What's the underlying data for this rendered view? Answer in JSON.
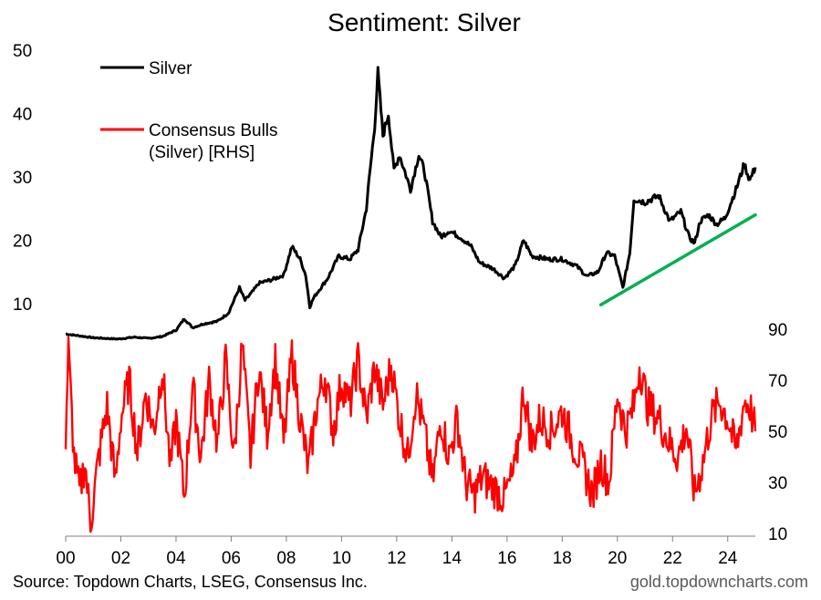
{
  "chart_data": {
    "type": "line",
    "title": "Sentiment: Silver",
    "x_ticks": [
      "00",
      "02",
      "04",
      "06",
      "08",
      "10",
      "12",
      "14",
      "16",
      "18",
      "20",
      "22",
      "24"
    ],
    "xlim": [
      2000,
      2025
    ],
    "left_axis": {
      "ticks": [
        "10",
        "20",
        "30",
        "40",
        "50"
      ],
      "ylim": [
        2.5,
        50
      ]
    },
    "right_axis": {
      "ticks": [
        "10",
        "30",
        "50",
        "70",
        "90"
      ],
      "ylim": [
        10,
        90
      ]
    },
    "grid": false,
    "legend_position": "top-left",
    "series": [
      {
        "name": "Silver",
        "axis": "left",
        "color": "#000000",
        "points": [
          [
            2000.0,
            5.2
          ],
          [
            2001.0,
            4.6
          ],
          [
            2001.9,
            4.4
          ],
          [
            2002.5,
            4.7
          ],
          [
            2003.0,
            4.5
          ],
          [
            2003.5,
            4.8
          ],
          [
            2004.0,
            5.8
          ],
          [
            2004.3,
            7.6
          ],
          [
            2004.6,
            6.2
          ],
          [
            2005.0,
            6.8
          ],
          [
            2005.5,
            7.2
          ],
          [
            2005.9,
            8.5
          ],
          [
            2006.3,
            12.5
          ],
          [
            2006.5,
            10.5
          ],
          [
            2006.8,
            12.0
          ],
          [
            2007.0,
            13.2
          ],
          [
            2007.5,
            13.8
          ],
          [
            2007.9,
            14.5
          ],
          [
            2008.2,
            19.0
          ],
          [
            2008.5,
            17.0
          ],
          [
            2008.7,
            14.5
          ],
          [
            2008.85,
            9.5
          ],
          [
            2009.0,
            11.0
          ],
          [
            2009.5,
            14.0
          ],
          [
            2009.9,
            17.5
          ],
          [
            2010.3,
            17.0
          ],
          [
            2010.6,
            18.5
          ],
          [
            2010.9,
            25.0
          ],
          [
            2011.0,
            29.5
          ],
          [
            2011.2,
            38.0
          ],
          [
            2011.32,
            46.5
          ],
          [
            2011.5,
            36.5
          ],
          [
            2011.7,
            40.0
          ],
          [
            2011.9,
            31.0
          ],
          [
            2012.1,
            33.5
          ],
          [
            2012.5,
            28.0
          ],
          [
            2012.8,
            33.5
          ],
          [
            2013.0,
            31.0
          ],
          [
            2013.3,
            23.0
          ],
          [
            2013.6,
            20.5
          ],
          [
            2013.9,
            21.5
          ],
          [
            2014.3,
            20.5
          ],
          [
            2014.7,
            19.0
          ],
          [
            2015.0,
            16.5
          ],
          [
            2015.5,
            15.5
          ],
          [
            2015.9,
            14.0
          ],
          [
            2016.3,
            16.0
          ],
          [
            2016.6,
            20.0
          ],
          [
            2016.9,
            17.5
          ],
          [
            2017.5,
            17.0
          ],
          [
            2018.0,
            17.0
          ],
          [
            2018.5,
            16.0
          ],
          [
            2018.9,
            14.3
          ],
          [
            2019.3,
            15.0
          ],
          [
            2019.6,
            18.0
          ],
          [
            2019.9,
            17.5
          ],
          [
            2020.2,
            12.5
          ],
          [
            2020.45,
            18.0
          ],
          [
            2020.6,
            26.5
          ],
          [
            2021.0,
            26.0
          ],
          [
            2021.5,
            27.0
          ],
          [
            2021.9,
            23.0
          ],
          [
            2022.3,
            24.5
          ],
          [
            2022.6,
            20.5
          ],
          [
            2022.8,
            19.5
          ],
          [
            2023.0,
            23.0
          ],
          [
            2023.3,
            24.0
          ],
          [
            2023.6,
            22.5
          ],
          [
            2023.9,
            23.5
          ],
          [
            2024.3,
            28.0
          ],
          [
            2024.6,
            32.0
          ],
          [
            2024.8,
            29.5
          ],
          [
            2025.0,
            31.5
          ]
        ]
      },
      {
        "name": "Consensus Bulls (Silver) [RHS]",
        "axis": "right",
        "color": "#ff0000",
        "points": [
          [
            2000.0,
            48
          ],
          [
            2000.1,
            82
          ],
          [
            2000.3,
            40
          ],
          [
            2000.5,
            26
          ],
          [
            2000.7,
            38
          ],
          [
            2000.9,
            14
          ],
          [
            2001.2,
            40
          ],
          [
            2001.5,
            60
          ],
          [
            2001.8,
            30
          ],
          [
            2002.0,
            55
          ],
          [
            2002.3,
            70
          ],
          [
            2002.6,
            42
          ],
          [
            2002.9,
            65
          ],
          [
            2003.2,
            50
          ],
          [
            2003.5,
            75
          ],
          [
            2003.8,
            35
          ],
          [
            2004.0,
            55
          ],
          [
            2004.3,
            24
          ],
          [
            2004.6,
            68
          ],
          [
            2004.9,
            40
          ],
          [
            2005.2,
            70
          ],
          [
            2005.5,
            45
          ],
          [
            2005.8,
            78
          ],
          [
            2006.1,
            40
          ],
          [
            2006.4,
            84
          ],
          [
            2006.7,
            40
          ],
          [
            2007.0,
            75
          ],
          [
            2007.3,
            50
          ],
          [
            2007.6,
            78
          ],
          [
            2007.9,
            45
          ],
          [
            2008.2,
            80
          ],
          [
            2008.5,
            55
          ],
          [
            2008.8,
            35
          ],
          [
            2009.1,
            60
          ],
          [
            2009.4,
            72
          ],
          [
            2009.7,
            50
          ],
          [
            2010.0,
            70
          ],
          [
            2010.3,
            60
          ],
          [
            2010.6,
            78
          ],
          [
            2010.9,
            55
          ],
          [
            2011.2,
            75
          ],
          [
            2011.5,
            60
          ],
          [
            2011.8,
            76
          ],
          [
            2012.1,
            55
          ],
          [
            2012.4,
            40
          ],
          [
            2012.7,
            65
          ],
          [
            2013.0,
            50
          ],
          [
            2013.3,
            30
          ],
          [
            2013.6,
            55
          ],
          [
            2013.9,
            40
          ],
          [
            2014.2,
            55
          ],
          [
            2014.5,
            30
          ],
          [
            2014.8,
            25
          ],
          [
            2015.1,
            32
          ],
          [
            2015.5,
            28
          ],
          [
            2015.9,
            24
          ],
          [
            2016.3,
            35
          ],
          [
            2016.6,
            66
          ],
          [
            2016.9,
            45
          ],
          [
            2017.2,
            55
          ],
          [
            2017.6,
            50
          ],
          [
            2018.0,
            58
          ],
          [
            2018.4,
            45
          ],
          [
            2018.8,
            35
          ],
          [
            2019.1,
            25
          ],
          [
            2019.4,
            38
          ],
          [
            2019.7,
            30
          ],
          [
            2020.0,
            65
          ],
          [
            2020.3,
            50
          ],
          [
            2020.6,
            60
          ],
          [
            2020.8,
            76
          ],
          [
            2021.1,
            60
          ],
          [
            2021.5,
            55
          ],
          [
            2021.9,
            45
          ],
          [
            2022.2,
            40
          ],
          [
            2022.5,
            52
          ],
          [
            2022.8,
            25
          ],
          [
            2023.1,
            38
          ],
          [
            2023.4,
            55
          ],
          [
            2023.7,
            62
          ],
          [
            2024.0,
            55
          ],
          [
            2024.3,
            42
          ],
          [
            2024.6,
            62
          ],
          [
            2024.8,
            60
          ],
          [
            2025.0,
            50
          ]
        ]
      }
    ],
    "annotations": [
      {
        "type": "trendline",
        "color": "#00b050",
        "from": [
          2019.4,
          9.8
        ],
        "to": [
          2025.0,
          24.0
        ]
      }
    ]
  },
  "footer": {
    "source": "Source: Topdown Charts, LSEG, Consensus Inc.",
    "website": "gold.topdowncharts.com"
  }
}
